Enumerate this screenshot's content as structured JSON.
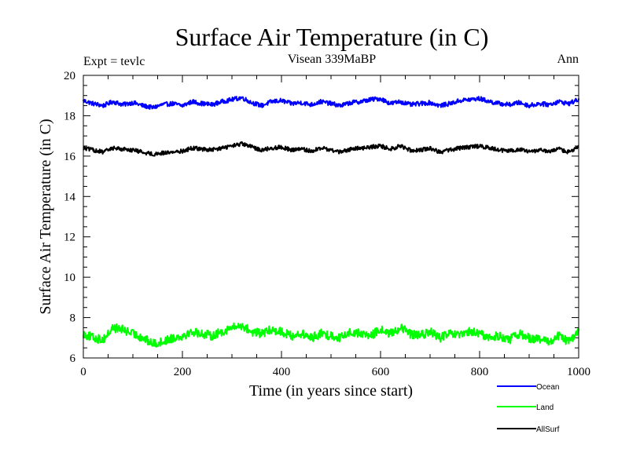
{
  "chart_data": {
    "type": "line",
    "title": "Surface Air Temperature (in C)",
    "subtitle_left": "Expt = tevlc",
    "subtitle_center": "Visean 339MaBP",
    "subtitle_right": "Ann",
    "xlabel": "Time (in years since start)",
    "ylabel": "Surface Air Temperature (in C)",
    "xlim": [
      0,
      1000
    ],
    "ylim": [
      6,
      20
    ],
    "x_ticks": [
      0,
      200,
      400,
      600,
      800,
      1000
    ],
    "y_ticks": [
      6,
      8,
      10,
      12,
      14,
      16,
      18,
      20
    ],
    "x_tick_labels": [
      "0",
      "200",
      "400",
      "600",
      "800",
      "1000"
    ],
    "y_tick_labels": [
      "6",
      "8",
      "10",
      "12",
      "14",
      "16",
      "18",
      "20"
    ],
    "legend_position": "bottom-right, outside plot",
    "series": [
      {
        "name": "Ocean",
        "color": "#0000ff",
        "x": [
          0,
          20,
          40,
          60,
          80,
          100,
          120,
          140,
          160,
          180,
          200,
          220,
          240,
          260,
          280,
          300,
          320,
          340,
          360,
          380,
          400,
          420,
          440,
          460,
          480,
          500,
          520,
          540,
          560,
          580,
          600,
          620,
          640,
          660,
          680,
          700,
          720,
          740,
          760,
          780,
          800,
          820,
          840,
          860,
          880,
          900,
          920,
          940,
          960,
          980,
          1000
        ],
        "values": [
          18.75,
          18.6,
          18.5,
          18.7,
          18.55,
          18.65,
          18.5,
          18.4,
          18.55,
          18.6,
          18.5,
          18.7,
          18.6,
          18.55,
          18.7,
          18.8,
          18.9,
          18.65,
          18.5,
          18.7,
          18.75,
          18.6,
          18.65,
          18.55,
          18.7,
          18.6,
          18.5,
          18.65,
          18.7,
          18.8,
          18.85,
          18.6,
          18.7,
          18.55,
          18.6,
          18.65,
          18.5,
          18.6,
          18.75,
          18.8,
          18.85,
          18.7,
          18.6,
          18.55,
          18.65,
          18.5,
          18.6,
          18.55,
          18.7,
          18.6,
          18.8
        ]
      },
      {
        "name": "Land",
        "color": "#00ff00",
        "x": [
          0,
          20,
          40,
          60,
          80,
          100,
          120,
          140,
          160,
          180,
          200,
          220,
          240,
          260,
          280,
          300,
          320,
          340,
          360,
          380,
          400,
          420,
          440,
          460,
          480,
          500,
          520,
          540,
          560,
          580,
          600,
          620,
          640,
          660,
          680,
          700,
          720,
          740,
          760,
          780,
          800,
          820,
          840,
          860,
          880,
          900,
          920,
          940,
          960,
          980,
          1000
        ],
        "values": [
          7.2,
          7.0,
          6.9,
          7.5,
          7.4,
          7.2,
          7.0,
          6.7,
          6.8,
          7.0,
          7.1,
          7.3,
          7.2,
          7.1,
          7.3,
          7.5,
          7.6,
          7.3,
          7.2,
          7.4,
          7.3,
          7.1,
          7.2,
          7.0,
          7.2,
          7.1,
          7.0,
          7.3,
          7.2,
          7.1,
          7.4,
          7.2,
          7.5,
          7.2,
          7.1,
          7.3,
          7.0,
          7.2,
          7.1,
          7.3,
          7.2,
          7.0,
          7.1,
          6.9,
          7.2,
          7.0,
          6.9,
          6.8,
          7.1,
          6.8,
          7.3
        ]
      },
      {
        "name": "AllSurf",
        "color": "#000000",
        "x": [
          0,
          20,
          40,
          60,
          80,
          100,
          120,
          140,
          160,
          180,
          200,
          220,
          240,
          260,
          280,
          300,
          320,
          340,
          360,
          380,
          400,
          420,
          440,
          460,
          480,
          500,
          520,
          540,
          560,
          580,
          600,
          620,
          640,
          660,
          680,
          700,
          720,
          740,
          760,
          780,
          800,
          820,
          840,
          860,
          880,
          900,
          920,
          940,
          960,
          980,
          1000
        ],
        "values": [
          16.4,
          16.3,
          16.2,
          16.4,
          16.35,
          16.3,
          16.2,
          16.1,
          16.15,
          16.2,
          16.25,
          16.4,
          16.35,
          16.3,
          16.4,
          16.5,
          16.6,
          16.45,
          16.3,
          16.4,
          16.45,
          16.3,
          16.35,
          16.25,
          16.4,
          16.3,
          16.2,
          16.35,
          16.4,
          16.45,
          16.5,
          16.35,
          16.5,
          16.3,
          16.3,
          16.4,
          16.2,
          16.3,
          16.4,
          16.45,
          16.5,
          16.4,
          16.3,
          16.25,
          16.35,
          16.2,
          16.3,
          16.2,
          16.35,
          16.2,
          16.45
        ]
      }
    ]
  }
}
